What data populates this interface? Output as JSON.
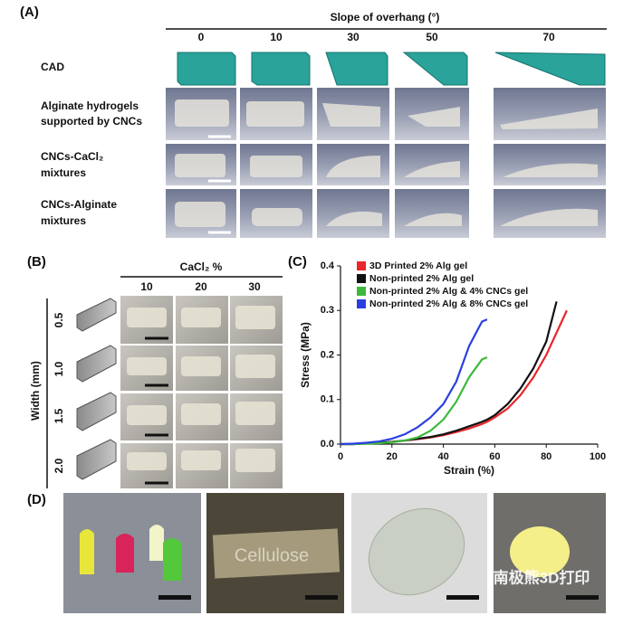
{
  "panel_a": {
    "label": "(A)",
    "header": "Slope of overhang (°)",
    "columns": [
      "0",
      "10",
      "30",
      "50",
      "70"
    ],
    "rows": [
      [
        "CAD"
      ],
      [
        "Alginate hydrogels",
        "supported by CNCs"
      ],
      [
        "CNCs-CaCl₂",
        "mixtures"
      ],
      [
        "CNCs-Alginate",
        "mixtures"
      ]
    ]
  },
  "panel_b": {
    "label": "(B)",
    "header": "CaCl₂ %",
    "columns": [
      "10",
      "20",
      "30"
    ],
    "row_axis": "Width (mm)",
    "rows": [
      "0.5",
      "1.0",
      "1.5",
      "2.0"
    ]
  },
  "chart_data": {
    "type": "line",
    "label": "(C)",
    "x_label": "Strain (%)",
    "y_label": "Stress (MPa)",
    "x": [
      0,
      5,
      10,
      15,
      20,
      25,
      30,
      35,
      40,
      45,
      50,
      55,
      57,
      60,
      65,
      70,
      75,
      80,
      84,
      88
    ],
    "series": [
      {
        "name": "3D Printed 2% Alg gel",
        "color": "#e8262b",
        "values": [
          0,
          0,
          0.002,
          0.003,
          0.005,
          0.008,
          0.011,
          0.015,
          0.02,
          0.027,
          0.035,
          0.045,
          0.05,
          0.06,
          0.08,
          0.11,
          0.15,
          0.2,
          0.25,
          0.3
        ]
      },
      {
        "name": "Non-printed 2% Alg gel",
        "color": "#111111",
        "values": [
          0,
          0,
          0.002,
          0.003,
          0.005,
          0.008,
          0.012,
          0.016,
          0.022,
          0.03,
          0.04,
          0.05,
          0.055,
          0.065,
          0.09,
          0.125,
          0.17,
          0.23,
          0.32,
          null
        ]
      },
      {
        "name": "Non-printed 2% Alg & 4% CNCs gel",
        "color": "#3cb93c",
        "values": [
          0,
          0,
          0.001,
          0.002,
          0.004,
          0.008,
          0.015,
          0.03,
          0.055,
          0.095,
          0.15,
          0.19,
          0.195,
          null,
          null,
          null,
          null,
          null,
          null,
          null
        ]
      },
      {
        "name": "Non-printed 2% Alg & 8% CNCs gel",
        "color": "#2b3fe0",
        "values": [
          0,
          0.001,
          0.003,
          0.006,
          0.012,
          0.022,
          0.038,
          0.06,
          0.09,
          0.14,
          0.22,
          0.275,
          0.28,
          null,
          null,
          null,
          null,
          null,
          null,
          null
        ]
      }
    ],
    "xlim": [
      0,
      100
    ],
    "xticks": [
      0,
      20,
      40,
      60,
      80,
      100
    ],
    "ylim": [
      0,
      0.4
    ],
    "yticks": [
      {
        "value": 0,
        "label": "0.0"
      },
      0.1,
      0.2,
      0.3,
      0.4
    ],
    "legend": "upper left"
  },
  "panel_d": {
    "label": "(D)",
    "sample_text": "Cellulose",
    "watermark": "南极熊3D打印"
  }
}
